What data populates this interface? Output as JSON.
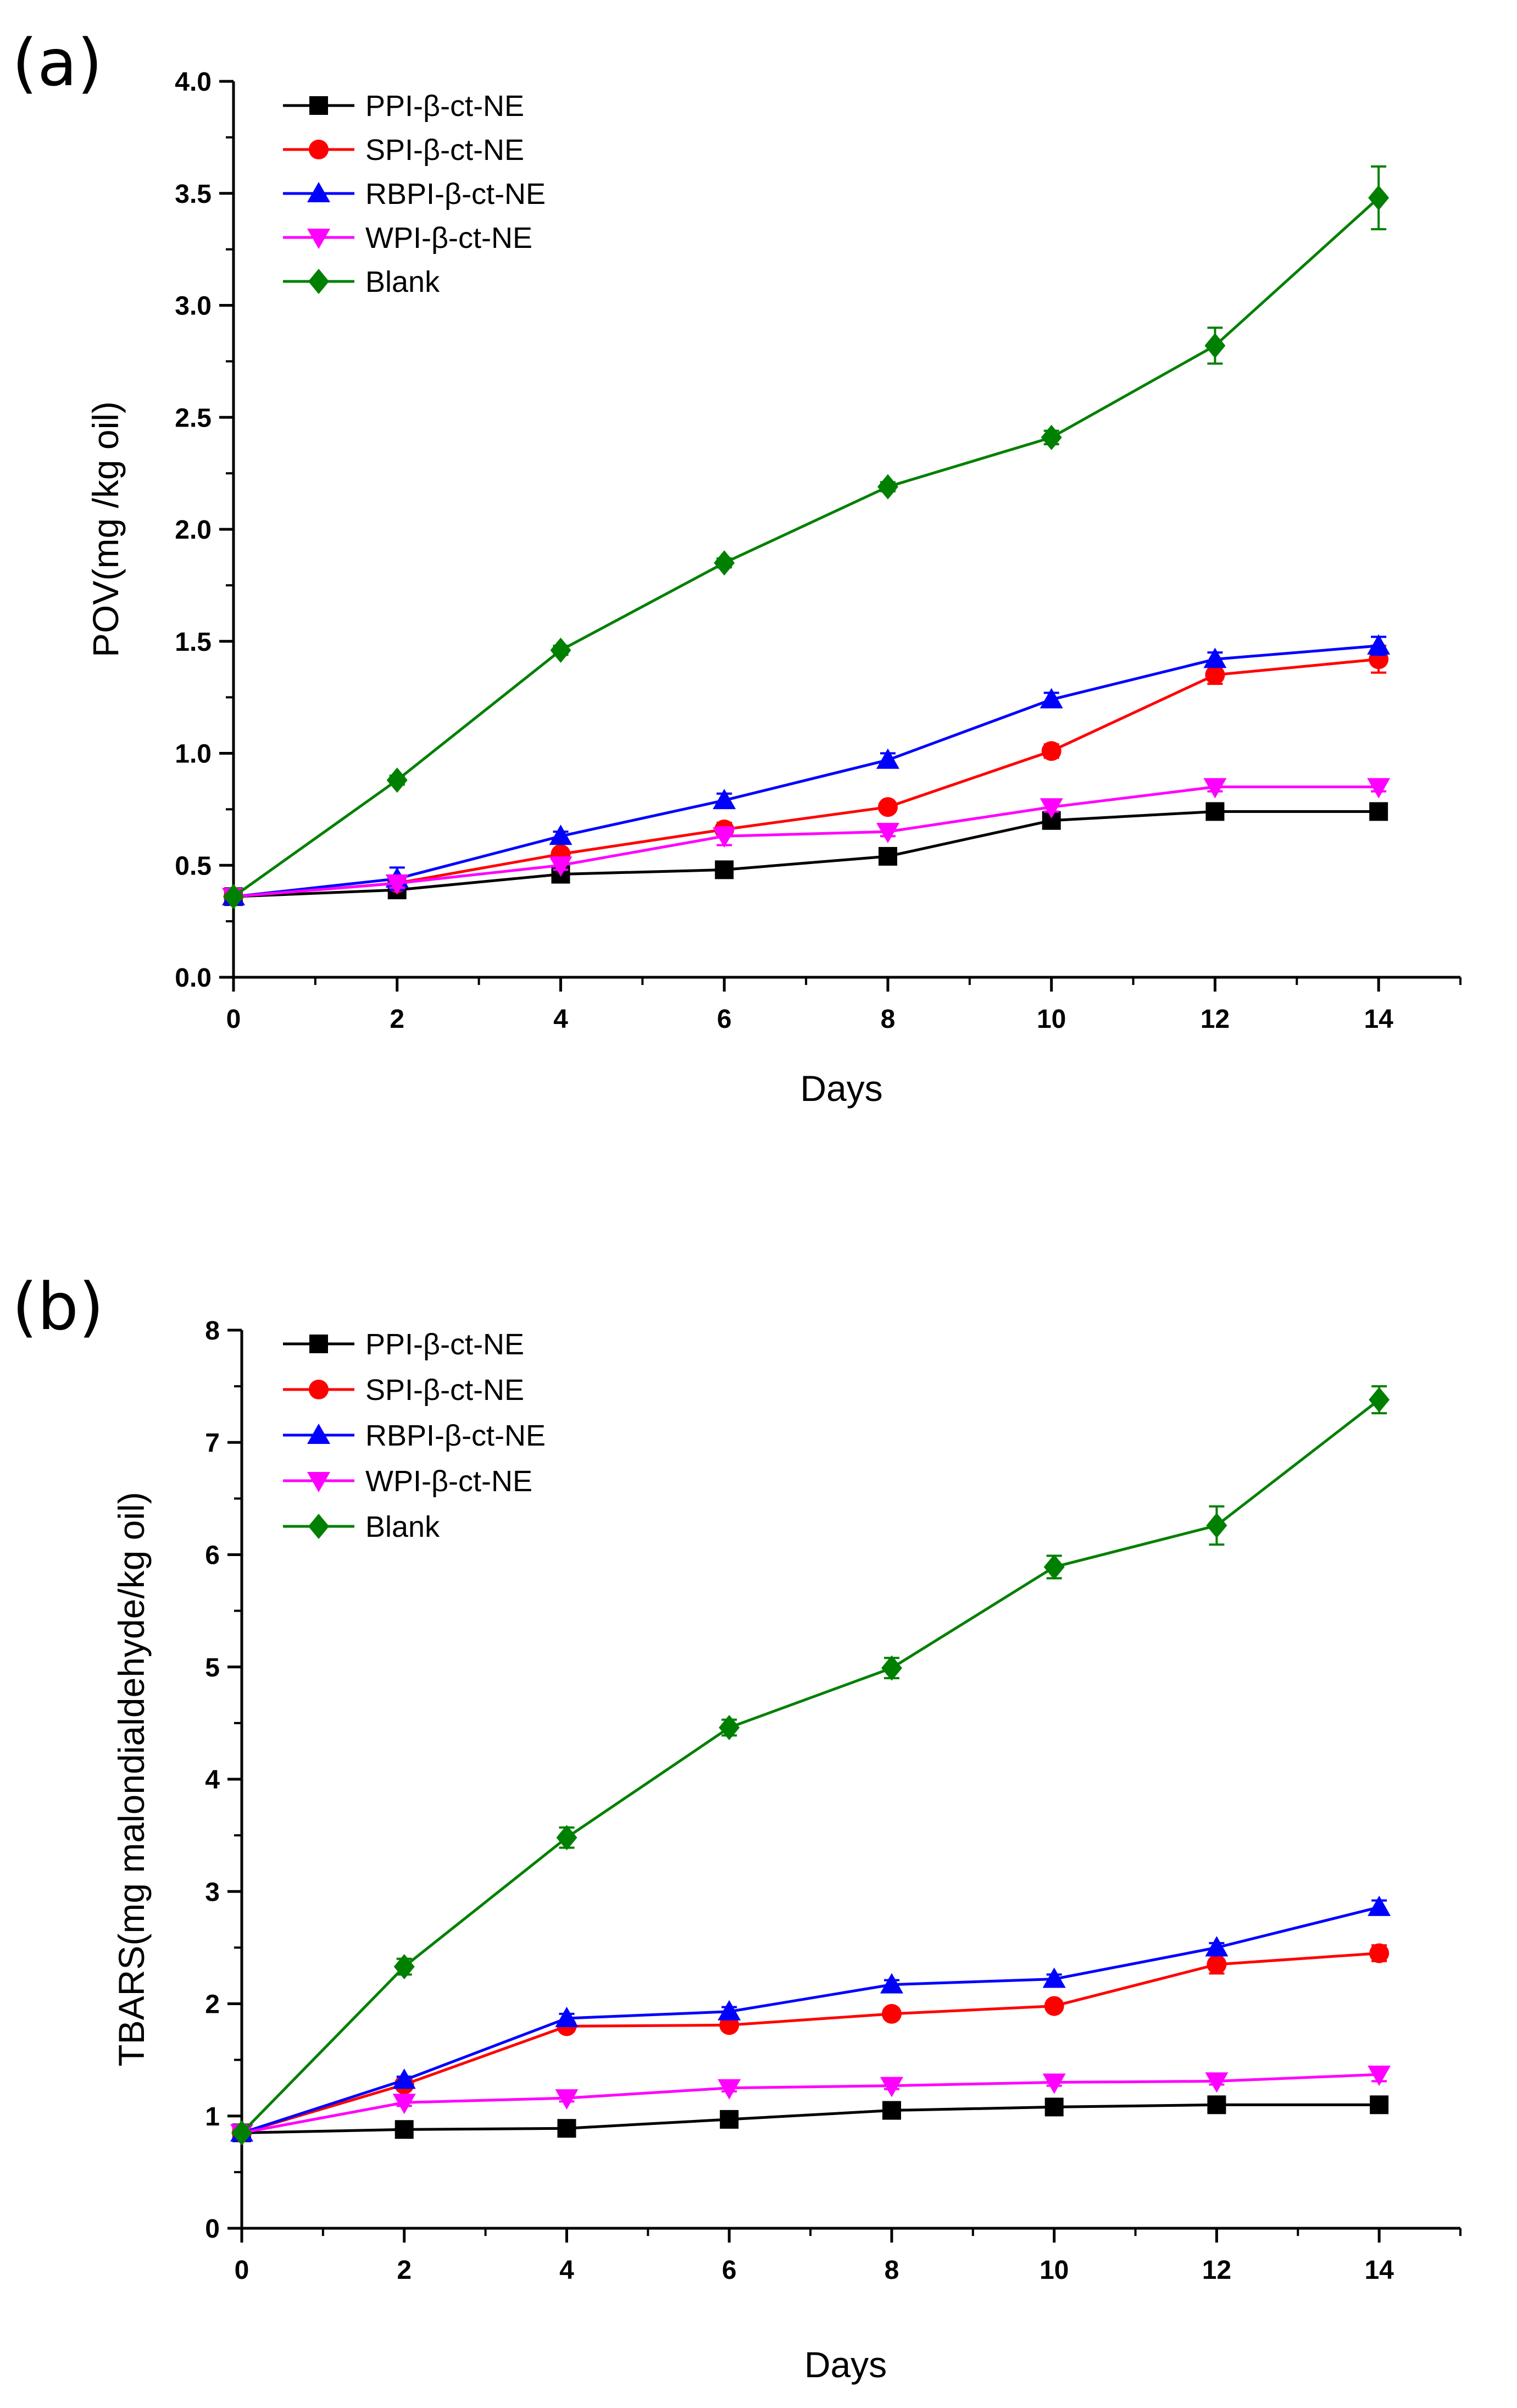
{
  "chart_data": [
    {
      "type": "line",
      "panel_label": "(a)",
      "xlabel": "Days",
      "ylabel": "POV(mg /kg oil)",
      "x": [
        0,
        2,
        4,
        6,
        8,
        10,
        12,
        14
      ],
      "xlim": [
        0,
        15
      ],
      "ylim": [
        0,
        4
      ],
      "xticks": [
        "0",
        "2",
        "4",
        "6",
        "8",
        "10",
        "12",
        "14"
      ],
      "yticks": [
        "0.0",
        "0.5",
        "1.0",
        "1.5",
        "2.0",
        "2.5",
        "3.0",
        "3.5",
        "4.0"
      ],
      "legend_position": "top-left",
      "series": [
        {
          "name": "PPI-β-ct-NE",
          "color": "#000000",
          "marker": "square",
          "values": [
            0.36,
            0.39,
            0.46,
            0.48,
            0.54,
            0.7,
            0.74,
            0.74
          ],
          "errors": [
            0.01,
            0.02,
            0.02,
            0.02,
            0.02,
            0.02,
            0.02,
            0.02
          ]
        },
        {
          "name": "SPI-β-ct-NE",
          "color": "#ff0000",
          "marker": "circle",
          "values": [
            0.36,
            0.42,
            0.55,
            0.66,
            0.76,
            1.01,
            1.35,
            1.42
          ],
          "errors": [
            0.01,
            0.02,
            0.02,
            0.03,
            0.02,
            0.03,
            0.04,
            0.06
          ]
        },
        {
          "name": "RBPI-β-ct-NE",
          "color": "#0000ff",
          "marker": "triangle-up",
          "values": [
            0.36,
            0.44,
            0.63,
            0.79,
            0.97,
            1.24,
            1.42,
            1.48
          ],
          "errors": [
            0.01,
            0.05,
            0.02,
            0.03,
            0.03,
            0.03,
            0.03,
            0.04
          ]
        },
        {
          "name": "WPI-β-ct-NE",
          "color": "#ff00ff",
          "marker": "triangle-down",
          "values": [
            0.36,
            0.42,
            0.5,
            0.63,
            0.65,
            0.76,
            0.85,
            0.85
          ],
          "errors": [
            0.01,
            0.02,
            0.02,
            0.04,
            0.02,
            0.02,
            0.02,
            0.02
          ]
        },
        {
          "name": "Blank",
          "color": "#008000",
          "marker": "diamond",
          "values": [
            0.36,
            0.88,
            1.46,
            1.85,
            2.19,
            2.41,
            2.82,
            3.48
          ],
          "errors": [
            0.01,
            0.02,
            0.02,
            0.02,
            0.02,
            0.03,
            0.08,
            0.14
          ]
        }
      ]
    },
    {
      "type": "line",
      "panel_label": "(b)",
      "xlabel": "Days",
      "ylabel": "TBARS(mg malondialdehyde/kg oil)",
      "x": [
        0,
        2,
        4,
        6,
        8,
        10,
        12,
        14
      ],
      "xlim": [
        0,
        15
      ],
      "ylim": [
        0,
        8
      ],
      "xticks": [
        "0",
        "2",
        "4",
        "6",
        "8",
        "10",
        "12",
        "14"
      ],
      "yticks": [
        "0",
        "1",
        "2",
        "3",
        "4",
        "5",
        "6",
        "7",
        "8"
      ],
      "legend_position": "top-left",
      "series": [
        {
          "name": "PPI-β-ct-NE",
          "color": "#000000",
          "marker": "square",
          "values": [
            0.85,
            0.88,
            0.89,
            0.97,
            1.05,
            1.08,
            1.1,
            1.1
          ],
          "errors": [
            0.02,
            0.03,
            0.03,
            0.03,
            0.03,
            0.03,
            0.03,
            0.06
          ]
        },
        {
          "name": "SPI-β-ct-NE",
          "color": "#ff0000",
          "marker": "circle",
          "values": [
            0.85,
            1.28,
            1.8,
            1.81,
            1.91,
            1.98,
            2.35,
            2.45
          ],
          "errors": [
            0.02,
            0.03,
            0.04,
            0.04,
            0.04,
            0.04,
            0.08,
            0.07
          ]
        },
        {
          "name": "RBPI-β-ct-NE",
          "color": "#0000ff",
          "marker": "triangle-up",
          "values": [
            0.85,
            1.32,
            1.87,
            1.93,
            2.17,
            2.22,
            2.5,
            2.86
          ],
          "errors": [
            0.02,
            0.03,
            0.04,
            0.04,
            0.04,
            0.04,
            0.04,
            0.06
          ]
        },
        {
          "name": "WPI-β-ct-NE",
          "color": "#ff00ff",
          "marker": "triangle-down",
          "values": [
            0.85,
            1.12,
            1.16,
            1.25,
            1.27,
            1.3,
            1.31,
            1.37
          ],
          "errors": [
            0.02,
            0.03,
            0.03,
            0.03,
            0.03,
            0.03,
            0.03,
            0.06
          ]
        },
        {
          "name": "Blank",
          "color": "#008000",
          "marker": "diamond",
          "values": [
            0.85,
            2.33,
            3.48,
            4.46,
            4.99,
            5.89,
            6.26,
            7.38
          ],
          "errors": [
            0.02,
            0.07,
            0.09,
            0.07,
            0.09,
            0.1,
            0.17,
            0.12
          ]
        }
      ]
    }
  ]
}
